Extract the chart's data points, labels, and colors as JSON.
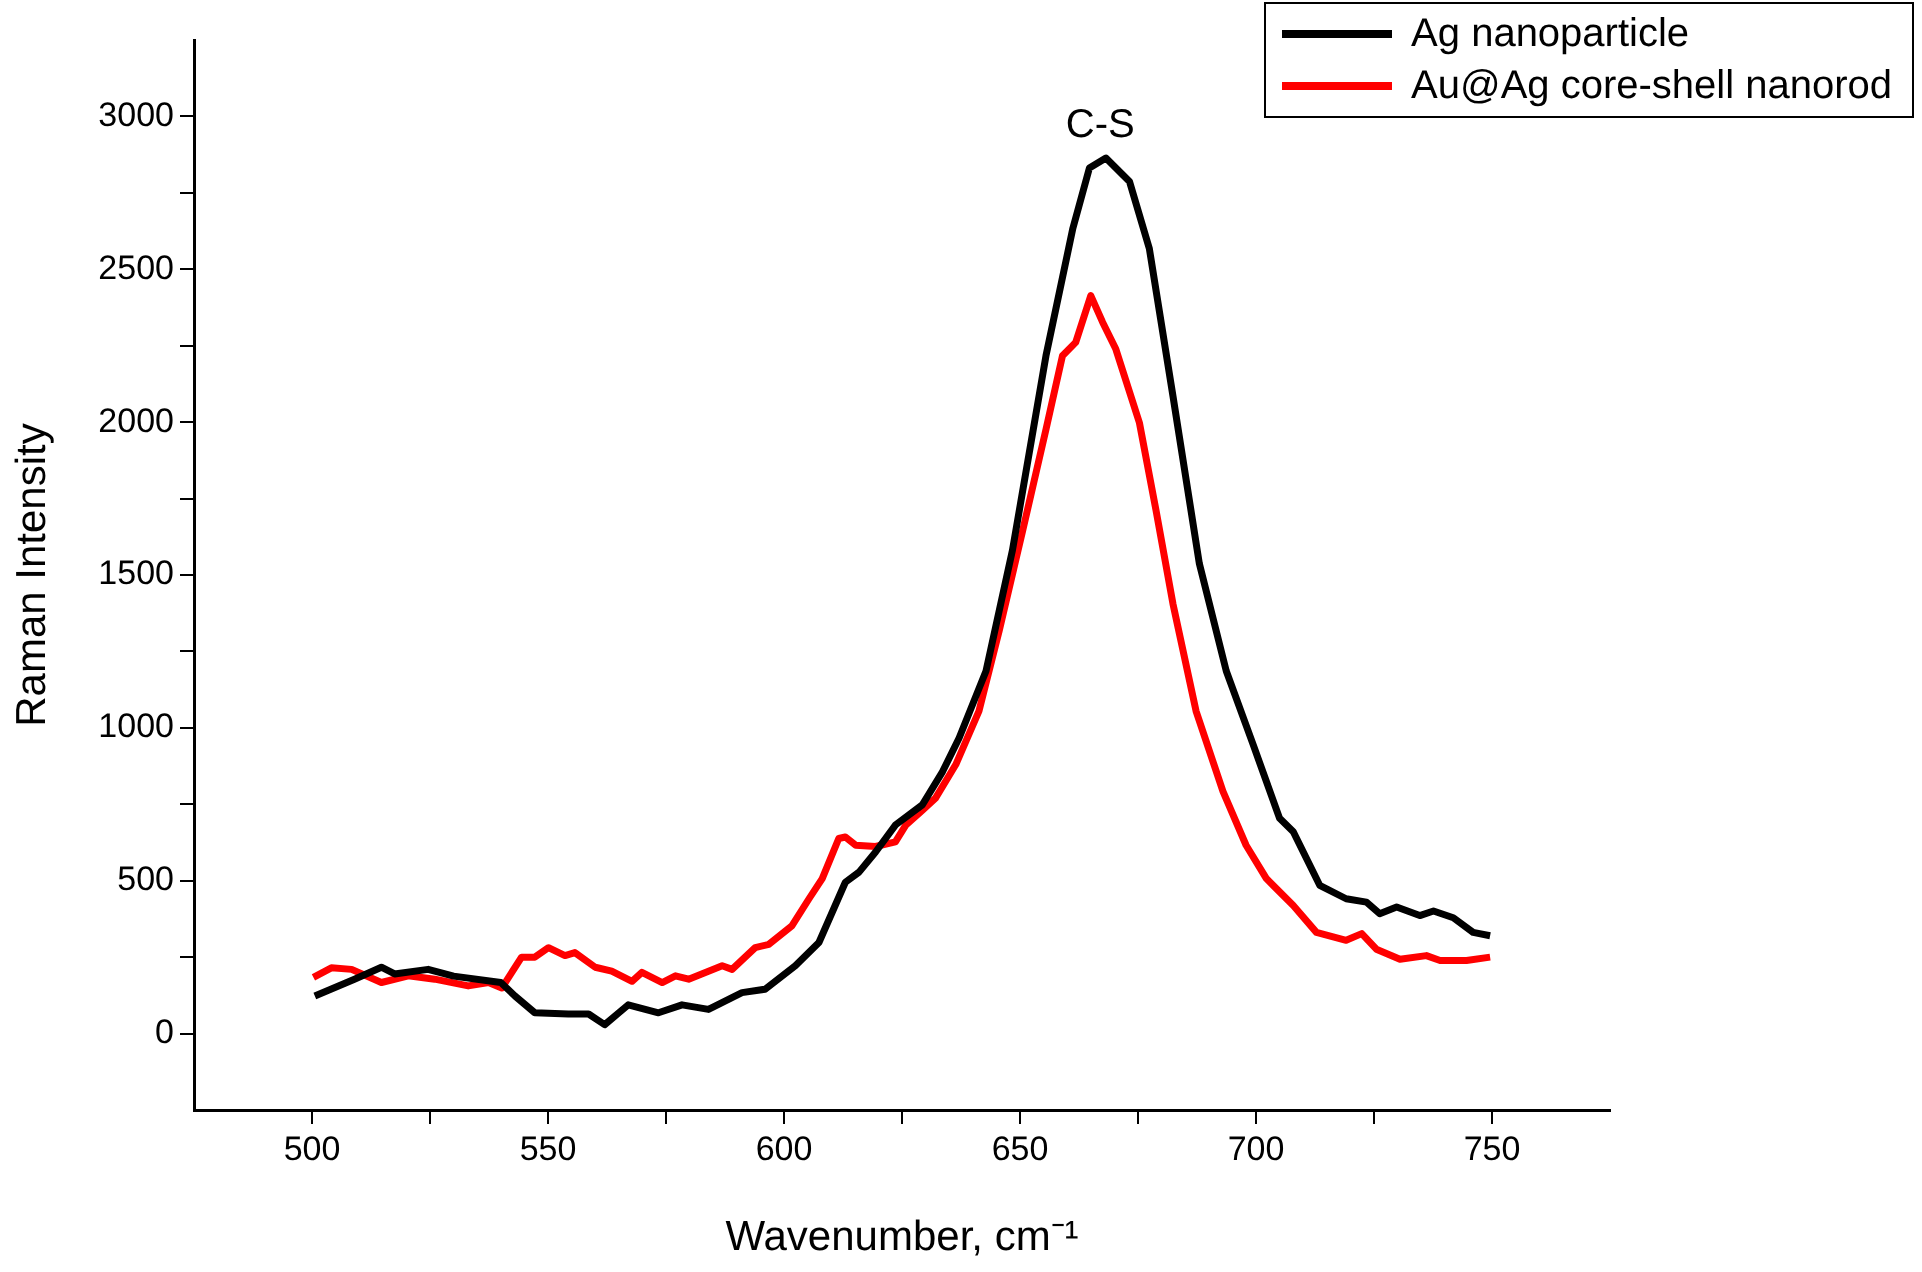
{
  "chart_data": {
    "type": "line",
    "xlabel": "Wavenumber, cm⁻¹",
    "ylabel": "Raman Intensity",
    "xlim": [
      475,
      775
    ],
    "xticks": [
      500,
      {
        "value": 525,
        "label": null
      },
      550,
      {
        "value": 575,
        "label": null
      },
      600,
      {
        "value": 625,
        "label": null
      },
      650,
      {
        "value": 675,
        "label": null
      },
      700,
      {
        "value": 725,
        "label": null
      },
      750
    ],
    "ylim": [
      -250,
      3250
    ],
    "yticks": [
      0,
      {
        "value": 250,
        "label": null
      },
      500,
      {
        "value": 750,
        "label": null
      },
      1000,
      {
        "value": 1250,
        "label": null
      },
      1500,
      {
        "value": 1750,
        "label": null
      },
      2000,
      {
        "value": 2250,
        "label": null
      },
      2500,
      {
        "value": 2750,
        "label": null
      },
      3000
    ],
    "grid": false,
    "legend": "top right",
    "marker": "none",
    "line_style": "solid",
    "annotations": [
      {
        "text": "C-S",
        "x": 667,
        "y": 2864
      }
    ],
    "series": [
      {
        "name": "Ag nanoparticle",
        "color": "#000000",
        "x": [
          500.6,
          509,
          514.7,
          517.5,
          524.6,
          530,
          540,
          543,
          547.2,
          554.3,
          558.6,
          562,
          567,
          573.4,
          578.4,
          584,
          591.1,
          596,
          602.4,
          607.4,
          613,
          615.9,
          619.4,
          623.6,
          629.3,
          633.6,
          637.1,
          642.8,
          648.4,
          655.5,
          661.2,
          664.7,
          668.2,
          673.2,
          677.4,
          682.4,
          688,
          693.7,
          699.4,
          705,
          707.9,
          713.5,
          719.1,
          723.4,
          726.2,
          729.8,
          734.7,
          737.6,
          741.8,
          746,
          749.6
        ],
        "values": [
          123,
          178,
          217,
          195,
          210,
          188,
          167,
          123,
          68,
          64,
          64,
          29,
          94,
          68,
          94,
          79,
          134,
          145,
          222,
          298,
          495,
          528,
          594,
          682,
          748,
          857,
          967,
          1186,
          1581,
          2217,
          2634,
          2831,
          2864,
          2787,
          2568,
          2086,
          1537,
          1186,
          945,
          704,
          660,
          485,
          441,
          430,
          392,
          414,
          386,
          401,
          379,
          331,
          320
        ]
      },
      {
        "name": "Au@Ag core-shell nanorod",
        "color": "#ff0000",
        "x": [
          500.3,
          504.1,
          508.4,
          514.7,
          520.4,
          526,
          533.1,
          537.4,
          540.2,
          544.4,
          547.2,
          550.1,
          553.6,
          555.7,
          560,
          563.5,
          567.8,
          569.9,
          574.2,
          577,
          579.8,
          586.9,
          589,
          593.9,
          596.8,
          601.7,
          605.3,
          608.1,
          611.6,
          613,
          615.2,
          619.4,
          623.6,
          625.8,
          629.3,
          632.1,
          636.4,
          641.3,
          645.6,
          650.6,
          655.5,
          659,
          661.8,
          665,
          667.5,
          670.3,
          675.3,
          678.8,
          682.4,
          687.3,
          693,
          697.9,
          702.2,
          707.9,
          712.8,
          719.1,
          722.4,
          725.5,
          730.5,
          736.1,
          739,
          744.6,
          749.6
        ],
        "values": [
          184,
          215,
          210,
          167,
          189,
          178,
          156,
          167,
          149,
          250,
          250,
          281,
          255,
          265,
          217,
          204,
          171,
          200,
          167,
          189,
          178,
          222,
          210,
          281,
          292,
          353,
          441,
          507,
          638,
          643,
          616,
          612,
          627,
          682,
          730,
          770,
          880,
          1055,
          1318,
          1647,
          1976,
          2217,
          2261,
          2414,
          2327,
          2239,
          1998,
          1713,
          1406,
          1055,
          792,
          616,
          507,
          419,
          331,
          305,
          327,
          276,
          243,
          255,
          239,
          239,
          250
        ]
      }
    ]
  }
}
